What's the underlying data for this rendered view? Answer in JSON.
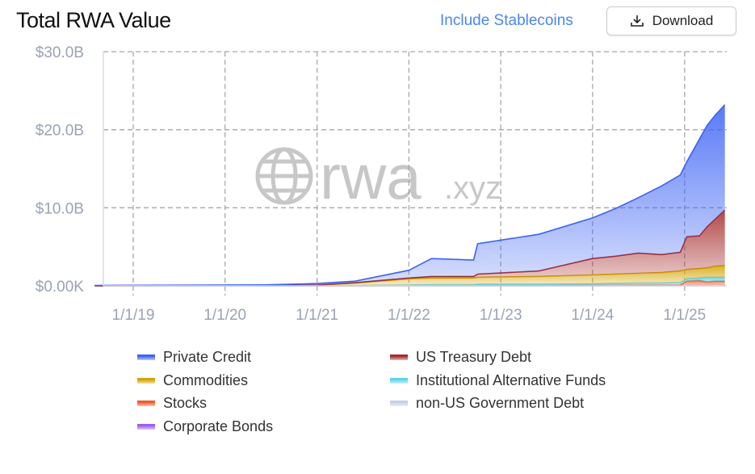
{
  "header": {
    "title": "Total RWA Value",
    "stablecoins_label": "Include Stablecoins",
    "download_label": "Download",
    "download_icon": "download-icon"
  },
  "watermark": {
    "text": "rwa",
    "suffix": ".xyz",
    "icon": "globe-icon"
  },
  "chart_data": {
    "type": "area",
    "stacked": true,
    "title": "Total RWA Value",
    "ylim": [
      0,
      30
    ],
    "yunit": "B USD",
    "yticks": [
      {
        "v": 0,
        "label": "$0.00K"
      },
      {
        "v": 10,
        "label": "$10.0B"
      },
      {
        "v": 20,
        "label": "$20.0B"
      },
      {
        "v": 30,
        "label": "$30.0B"
      }
    ],
    "xticks": [
      "1/1/19",
      "1/1/20",
      "1/1/21",
      "1/1/22",
      "1/1/23",
      "1/1/24",
      "1/1/25"
    ],
    "xtick_dates": [
      "2019-01-01",
      "2020-01-01",
      "2021-01-01",
      "2022-01-01",
      "2023-01-01",
      "2024-01-01",
      "2025-01-01"
    ],
    "xlim": [
      "2018-09-01",
      "2025-07-20"
    ],
    "grid": true,
    "legend_position": "bottom",
    "x": [
      "2018-08-01",
      "2019-06-01",
      "2020-06-01",
      "2021-01-01",
      "2021-06-01",
      "2022-01-01",
      "2022-04-01",
      "2022-09-15",
      "2022-10-01",
      "2023-06-01",
      "2024-01-01",
      "2024-04-01",
      "2024-07-01",
      "2024-10-01",
      "2024-12-15",
      "2025-01-10",
      "2025-03-01",
      "2025-04-01",
      "2025-05-01",
      "2025-06-10"
    ],
    "series": [
      {
        "name": "Corporate Bonds",
        "color": "#9b5cf0",
        "values": [
          0,
          0,
          0,
          0,
          0,
          0.01,
          0.01,
          0.01,
          0.01,
          0.01,
          0.01,
          0.02,
          0.02,
          0.02,
          0.02,
          0.02,
          0.02,
          0.02,
          0.02,
          0.02
        ]
      },
      {
        "name": "non-US Government Debt",
        "color": "#c3cfe8",
        "values": [
          0,
          0,
          0,
          0,
          0.01,
          0.01,
          0.02,
          0.02,
          0.02,
          0.02,
          0.03,
          0.03,
          0.03,
          0.03,
          0.05,
          0.05,
          0.05,
          0.05,
          0.05,
          0.05
        ]
      },
      {
        "name": "Stocks",
        "color": "#f05a28",
        "values": [
          0,
          0,
          0,
          0,
          0,
          0.01,
          0.01,
          0.01,
          0.02,
          0.02,
          0.02,
          0.02,
          0.03,
          0.03,
          0.03,
          0.53,
          0.63,
          0.43,
          0.53,
          0.53
        ]
      },
      {
        "name": "Institutional Alternative Funds",
        "color": "#5fd3ec",
        "values": [
          0,
          0,
          0,
          0.01,
          0.04,
          0.07,
          0.11,
          0.11,
          0.15,
          0.15,
          0.19,
          0.23,
          0.27,
          0.27,
          0.3,
          0.3,
          0.3,
          0.6,
          0.5,
          0.5
        ]
      },
      {
        "name": "Commodities",
        "color": "#d4a300",
        "values": [
          0.01,
          0.02,
          0.04,
          0.07,
          0.3,
          0.8,
          0.85,
          0.85,
          0.9,
          1.0,
          1.15,
          1.2,
          1.25,
          1.35,
          1.5,
          1.2,
          1.2,
          1.2,
          1.4,
          1.5
        ]
      },
      {
        "name": "US Treasury Debt",
        "color": "#a52a2a",
        "values": [
          0.01,
          0.01,
          0.01,
          0.02,
          0.05,
          0.1,
          0.2,
          0.2,
          0.4,
          0.7,
          2.1,
          2.3,
          2.6,
          2.3,
          2.4,
          4.2,
          4.2,
          5.3,
          6.0,
          7.1
        ]
      },
      {
        "name": "Private Credit",
        "color": "#3b62f5",
        "values": [
          0.03,
          0.05,
          0.07,
          0.2,
          0.2,
          1.0,
          2.3,
          2.1,
          3.9,
          4.7,
          5.2,
          6.1,
          7.1,
          8.8,
          9.9,
          9.6,
          12.4,
          13.0,
          13.3,
          13.5
        ]
      }
    ],
    "legend_order": [
      "Private Credit",
      "US Treasury Debt",
      "Commodities",
      "Institutional Alternative Funds",
      "Stocks",
      "non-US Government Debt",
      "Corporate Bonds"
    ]
  }
}
